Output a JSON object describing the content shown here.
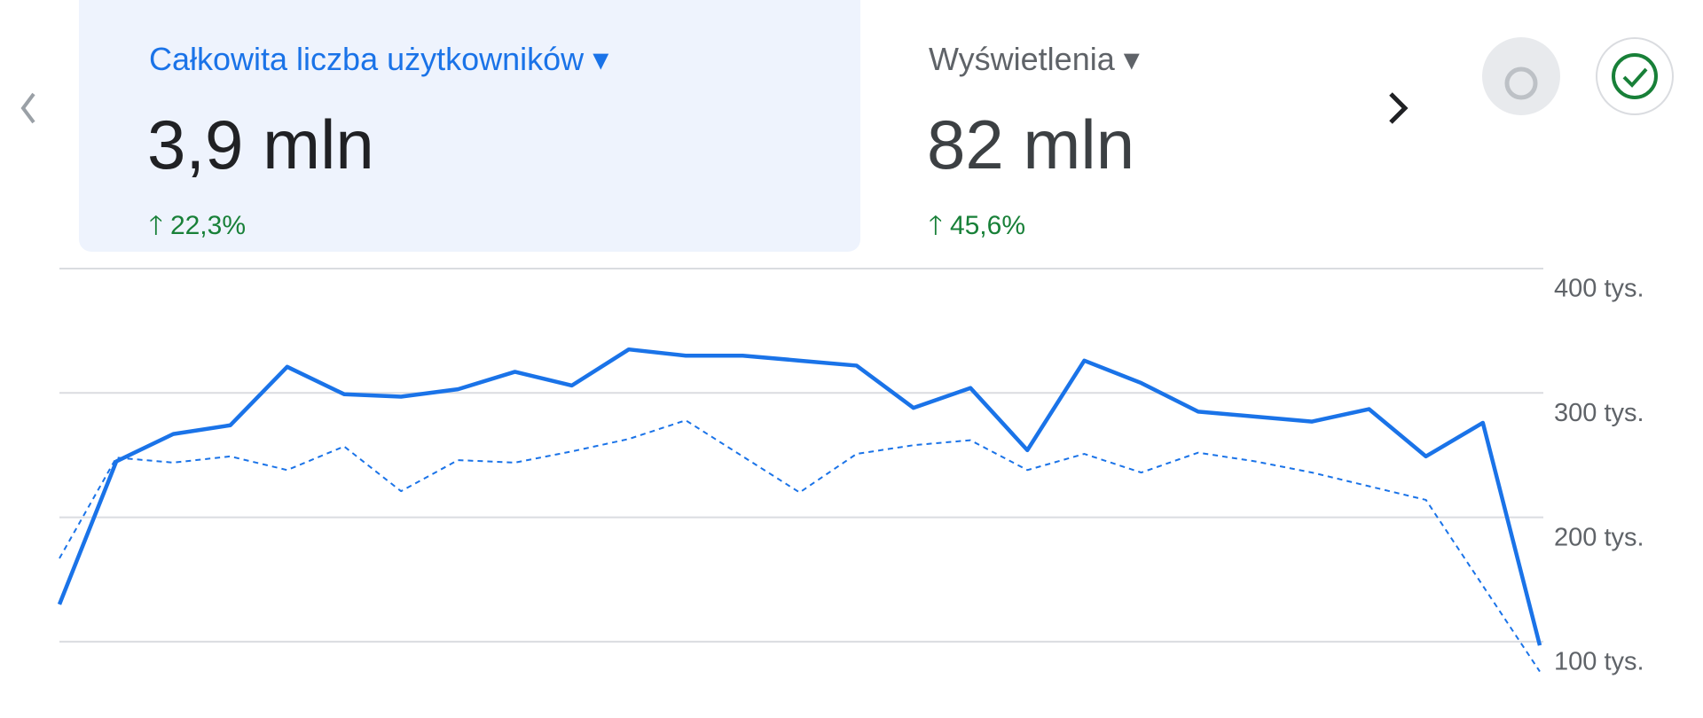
{
  "cards": [
    {
      "title": "Całkowita liczba użytkowników",
      "value": "3,9 mln",
      "change": "22,3%"
    },
    {
      "title": "Wyświetlenia",
      "value": "82 mln",
      "change": "45,6%"
    }
  ],
  "chart_data": {
    "type": "line",
    "categories": [
      null,
      null,
      null,
      null,
      null,
      null,
      null,
      null,
      null,
      null,
      null,
      null,
      null,
      null,
      null,
      null,
      null,
      null,
      null,
      null,
      null,
      null,
      null,
      null,
      null,
      null,
      null
    ],
    "series": [
      {
        "color": "#1a73e8",
        "dashed": false,
        "values": [
          130000,
          245000,
          267000,
          274000,
          321000,
          299000,
          297000,
          303000,
          317000,
          306000,
          335000,
          330000,
          330000,
          326000,
          322000,
          288000,
          304000,
          254000,
          326000,
          308000,
          285000,
          281000,
          277000,
          287000,
          249000,
          276000,
          97000
        ]
      },
      {
        "color": "#1a73e8",
        "dashed": true,
        "values": [
          167000,
          248000,
          244000,
          249000,
          238000,
          257000,
          221000,
          246000,
          244000,
          253000,
          263000,
          278000,
          249000,
          220000,
          251000,
          258000,
          262000,
          238000,
          251000,
          236000,
          252000,
          245000,
          236000,
          225000,
          214000,
          145000,
          76000
        ]
      }
    ],
    "ylim": [
      70000,
      400000
    ],
    "yticks": [
      {
        "value": 100000,
        "label": "100 tys."
      },
      {
        "value": 200000,
        "label": "200 tys."
      },
      {
        "value": 300000,
        "label": "300 tys."
      },
      {
        "value": 400000,
        "label": "400 tys."
      }
    ],
    "grid": true
  }
}
